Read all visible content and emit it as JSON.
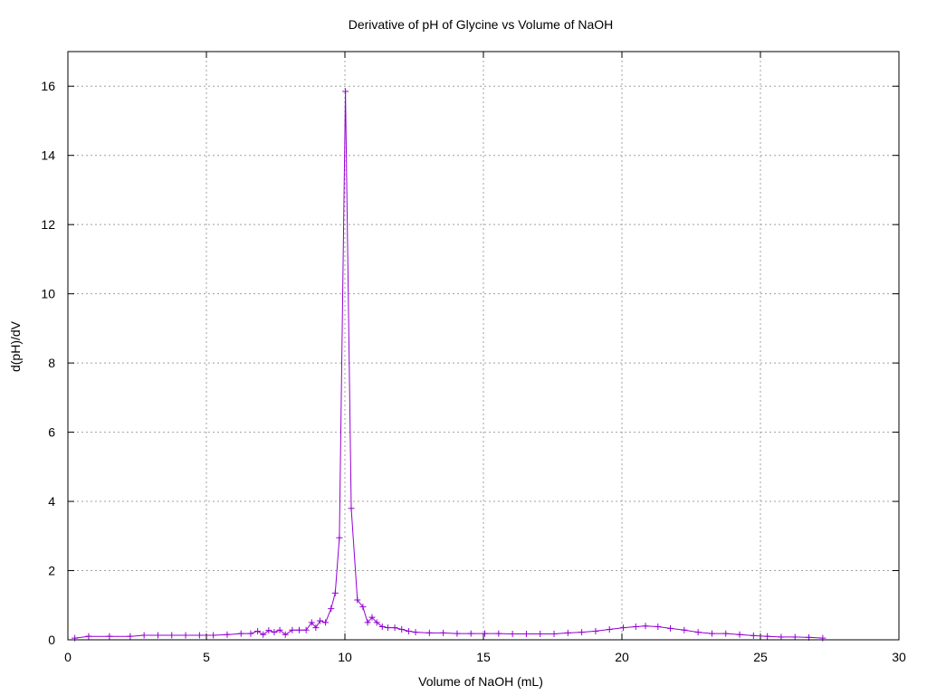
{
  "chart_data": {
    "type": "line",
    "title": "Derivative of pH of Glycine vs Volume of NaOH",
    "xlabel": "Volume of NaOH (mL)",
    "ylabel": "d(pH)/dV",
    "xlim": [
      0,
      30
    ],
    "ylim": [
      0,
      17
    ],
    "xticks": [
      0,
      5,
      10,
      15,
      20,
      25,
      30
    ],
    "yticks": [
      0,
      2,
      4,
      6,
      8,
      10,
      12,
      14,
      16
    ],
    "grid": true,
    "grid_style": "dotted",
    "legend": "none",
    "markers": "plus",
    "series": [
      {
        "color": "#9400d3",
        "x": [
          0.25,
          0.75,
          1.5,
          2.25,
          2.75,
          3.25,
          3.75,
          4.25,
          4.75,
          5.25,
          5.75,
          6.25,
          6.6,
          6.85,
          7.05,
          7.25,
          7.45,
          7.65,
          7.85,
          8.1,
          8.35,
          8.6,
          8.8,
          8.95,
          9.1,
          9.3,
          9.5,
          9.65,
          9.8,
          10.02,
          10.23,
          10.45,
          10.65,
          10.82,
          10.98,
          11.15,
          11.35,
          11.55,
          11.8,
          12.05,
          12.3,
          12.55,
          13.05,
          13.55,
          14.05,
          14.55,
          15.05,
          15.55,
          16.05,
          16.55,
          17.05,
          17.55,
          18.05,
          18.55,
          19.05,
          19.55,
          20.05,
          20.5,
          20.85,
          21.3,
          21.75,
          22.25,
          22.75,
          23.25,
          23.75,
          24.25,
          24.75,
          25.25,
          25.75,
          26.25,
          26.75,
          27.25
        ],
        "y": [
          0.05,
          0.1,
          0.1,
          0.1,
          0.13,
          0.13,
          0.13,
          0.13,
          0.13,
          0.13,
          0.15,
          0.18,
          0.18,
          0.25,
          0.15,
          0.27,
          0.22,
          0.28,
          0.15,
          0.28,
          0.28,
          0.28,
          0.5,
          0.35,
          0.55,
          0.5,
          0.9,
          1.35,
          2.95,
          15.85,
          3.8,
          1.15,
          0.95,
          0.5,
          0.65,
          0.5,
          0.38,
          0.35,
          0.35,
          0.3,
          0.25,
          0.22,
          0.2,
          0.2,
          0.18,
          0.18,
          0.18,
          0.18,
          0.17,
          0.17,
          0.17,
          0.17,
          0.2,
          0.22,
          0.25,
          0.3,
          0.35,
          0.38,
          0.4,
          0.38,
          0.33,
          0.28,
          0.22,
          0.18,
          0.18,
          0.15,
          0.12,
          0.1,
          0.08,
          0.08,
          0.07,
          0.05
        ]
      }
    ]
  }
}
